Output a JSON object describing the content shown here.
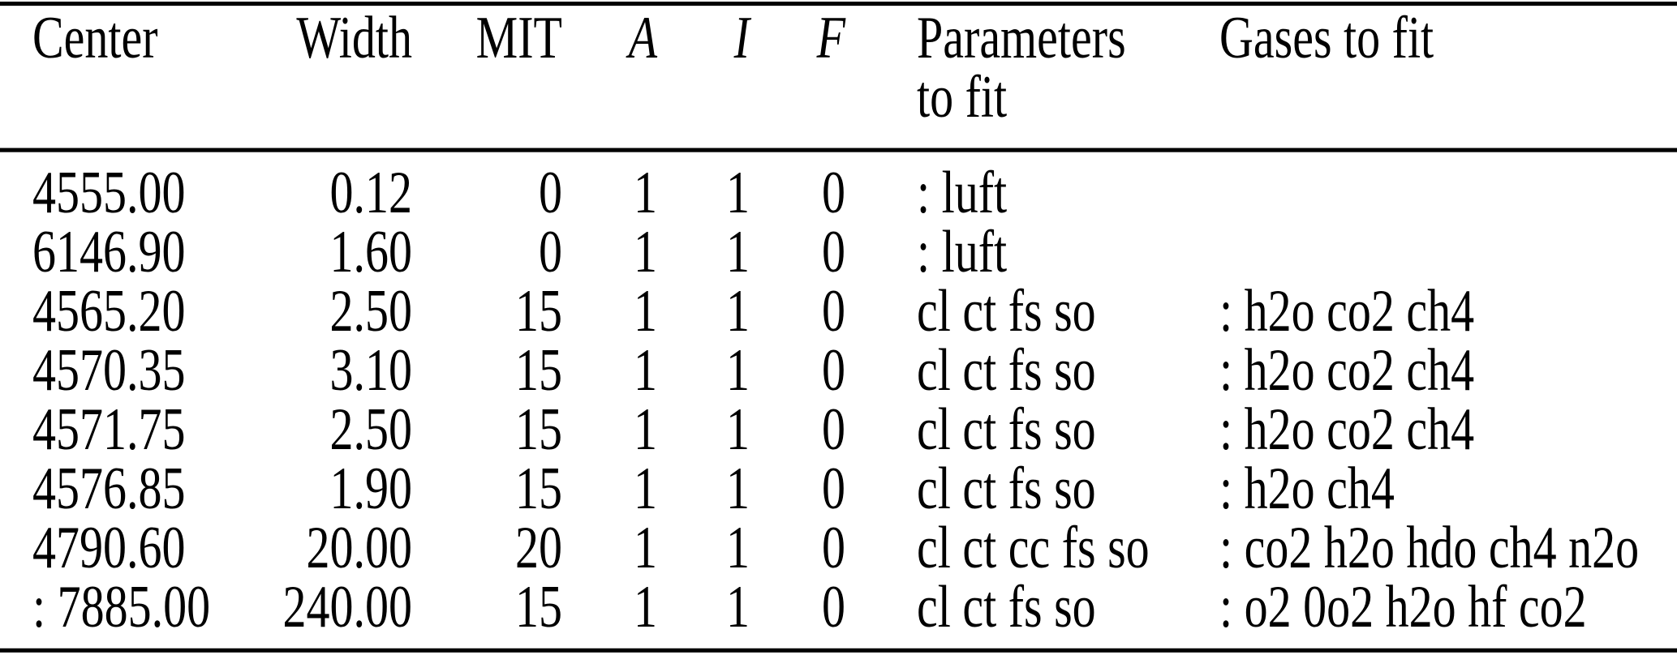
{
  "colors": {
    "background": "#ffffff",
    "text": "#000000",
    "rule": "#000000"
  },
  "table": {
    "header": {
      "center": "Center",
      "width": "Width",
      "mit": "MIT",
      "a": "A",
      "i": "I",
      "f": "F",
      "parameters_line1": "Parameters",
      "parameters_line2": "to fit",
      "gases": "Gases to fit"
    },
    "column_keys": [
      "center",
      "width",
      "mit",
      "a",
      "i",
      "f",
      "parameters",
      "gases"
    ],
    "rows": [
      {
        "center": "4555.00",
        "width": "0.12",
        "mit": "0",
        "a": "1",
        "i": "1",
        "f": "0",
        "parameters": ": luft",
        "gases": ""
      },
      {
        "center": "6146.90",
        "width": "1.60",
        "mit": "0",
        "a": "1",
        "i": "1",
        "f": "0",
        "parameters": ": luft",
        "gases": ""
      },
      {
        "center": "4565.20",
        "width": "2.50",
        "mit": "15",
        "a": "1",
        "i": "1",
        "f": "0",
        "parameters": "cl ct fs so",
        "gases": ": h2o co2 ch4"
      },
      {
        "center": "4570.35",
        "width": "3.10",
        "mit": "15",
        "a": "1",
        "i": "1",
        "f": "0",
        "parameters": "cl ct fs so",
        "gases": ": h2o co2 ch4"
      },
      {
        "center": "4571.75",
        "width": "2.50",
        "mit": "15",
        "a": "1",
        "i": "1",
        "f": "0",
        "parameters": "cl ct fs so",
        "gases": ": h2o co2 ch4"
      },
      {
        "center": "4576.85",
        "width": "1.90",
        "mit": "15",
        "a": "1",
        "i": "1",
        "f": "0",
        "parameters": "cl ct fs so",
        "gases": ": h2o ch4"
      },
      {
        "center": "4790.60",
        "width": "20.00",
        "mit": "20",
        "a": "1",
        "i": "1",
        "f": "0",
        "parameters": "cl ct cc fs so",
        "gases": ": co2 h2o hdo ch4 n2o"
      },
      {
        "center": ": 7885.00",
        "width": "240.00",
        "mit": "15",
        "a": "1",
        "i": "1",
        "f": "0",
        "parameters": "cl ct fs so",
        "gases": ": o2 0o2 h2o hf co2"
      }
    ]
  }
}
